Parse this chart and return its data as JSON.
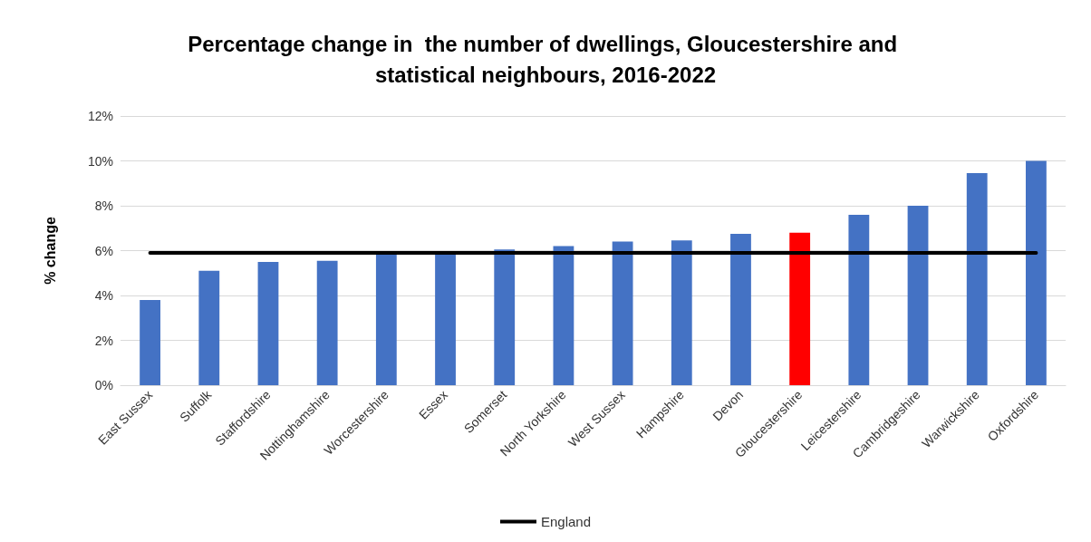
{
  "chart_data": {
    "type": "bar",
    "title": "Percentage change in  the number of dwellings, Gloucestershire and statistical neighbours, 2016-2022",
    "ylabel": "% change",
    "categories": [
      "East Sussex",
      "Suffolk",
      "Staffordshire",
      "Nottinghamshire",
      "Worcestershire",
      "Essex",
      "Somerset",
      "North Yorkshire",
      "West Sussex",
      "Hampshire",
      "Devon",
      "Gloucestershire",
      "Leicestershire",
      "Cambridgeshire",
      "Warwickshire",
      "Oxfordshire"
    ],
    "series": [
      {
        "colors": [
          "#4472c4",
          "#4472c4",
          "#4472c4",
          "#4472c4",
          "#4472c4",
          "#4472c4",
          "#4472c4",
          "#4472c4",
          "#4472c4",
          "#4472c4",
          "#4472c4",
          "#ff0000",
          "#4472c4",
          "#4472c4",
          "#4472c4",
          "#4472c4"
        ],
        "values": [
          3.8,
          5.1,
          5.5,
          5.55,
          5.9,
          5.9,
          6.05,
          6.2,
          6.4,
          6.45,
          6.75,
          6.8,
          7.6,
          8.0,
          9.45,
          10.0
        ]
      },
      {
        "type": "line",
        "name": "England",
        "color": "#000000",
        "values": [
          5.9,
          5.9,
          5.9,
          5.9,
          5.9,
          5.9,
          5.9,
          5.9,
          5.9,
          5.9,
          5.9,
          5.9,
          5.9,
          5.9,
          5.9,
          5.9
        ]
      }
    ],
    "ylim": [
      0,
      12
    ],
    "yticks": [
      {
        "value": 0,
        "label": "0%"
      },
      {
        "value": 2,
        "label": "2%"
      },
      {
        "value": 4,
        "label": "4%"
      },
      {
        "value": 6,
        "label": "6%"
      },
      {
        "value": 8,
        "label": "8%"
      },
      {
        "value": 10,
        "label": "10%"
      },
      {
        "value": 12,
        "label": "12%"
      }
    ],
    "grid": "y",
    "legend": "bottom",
    "marker": "none"
  }
}
